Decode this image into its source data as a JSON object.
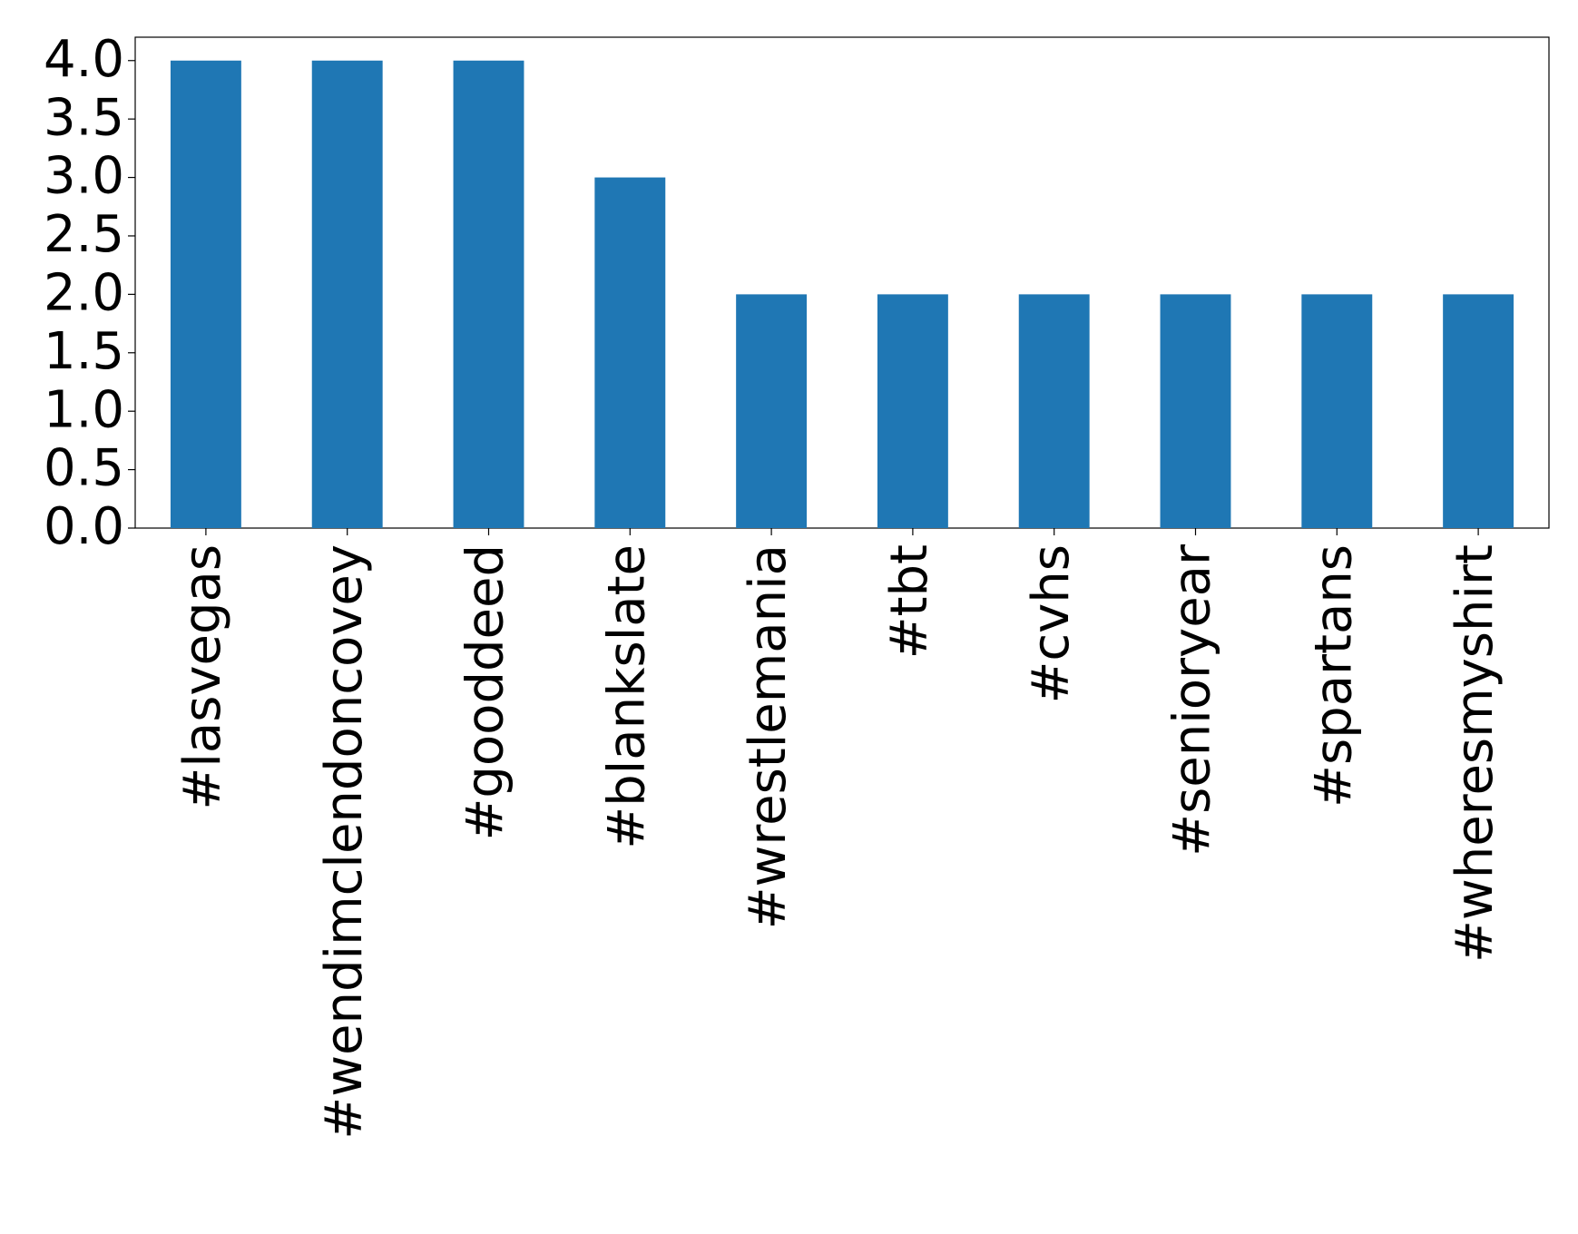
{
  "chart_data": {
    "type": "bar",
    "categories": [
      "#lasvegas",
      "#wendimclendoncovey",
      "#gooddeed",
      "#blankslate",
      "#wrestlemania",
      "#tbt",
      "#cvhs",
      "#senioryear",
      "#spartans",
      "#wheresmyshirt"
    ],
    "values": [
      4,
      4,
      4,
      3,
      2,
      2,
      2,
      2,
      2,
      2
    ],
    "color": "#1f77b4",
    "ylim": [
      0,
      4.2
    ],
    "yticks": [
      {
        "value": 0,
        "label": "0.0"
      },
      {
        "value": 0.5,
        "label": "0.5"
      },
      {
        "value": 1,
        "label": "1.0"
      },
      {
        "value": 1.5,
        "label": "1.5"
      },
      {
        "value": 2,
        "label": "2.0"
      },
      {
        "value": 2.5,
        "label": "2.5"
      },
      {
        "value": 3,
        "label": "3.0"
      },
      {
        "value": 3.5,
        "label": "3.5"
      },
      {
        "value": 4,
        "label": "4.0"
      }
    ],
    "grid": false
  }
}
